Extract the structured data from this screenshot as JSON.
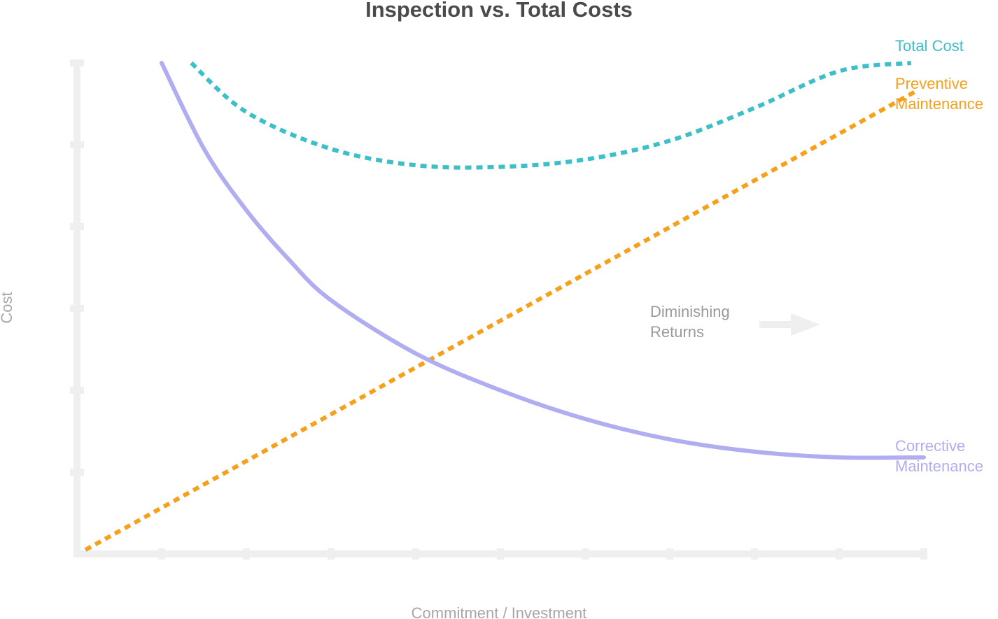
{
  "chart_data": {
    "type": "line",
    "title": "Inspection vs. Total Costs",
    "xlabel": "Commitment / Investment",
    "ylabel": "Cost",
    "xlim": [
      0,
      10
    ],
    "ylim": [
      0,
      6
    ],
    "grid": false,
    "x_ticks": 10,
    "y_ticks": 6,
    "series": [
      {
        "name": "Total Cost",
        "label_lines": [
          "Total Cost"
        ],
        "color": "#3dbfc8",
        "style": "dotted",
        "x": [
          1.35,
          2.0,
          3.0,
          4.0,
          5.0,
          6.0,
          7.0,
          8.0,
          9.0,
          9.85
        ],
        "y": [
          6.0,
          5.4,
          4.95,
          4.75,
          4.73,
          4.82,
          5.05,
          5.45,
          5.9,
          6.0
        ]
      },
      {
        "name": "Preventive Maintenance",
        "label_lines": [
          "Preventive",
          "Maintenance"
        ],
        "color": "#f5a11c",
        "style": "dotted",
        "x": [
          0.1,
          9.9
        ],
        "y": [
          0.05,
          5.65
        ]
      },
      {
        "name": "Corrective Maintenance",
        "label_lines": [
          "Corrective",
          "Maintenance"
        ],
        "color": "#b1adf1",
        "style": "solid",
        "x": [
          1.0,
          1.5,
          2.0,
          2.5,
          3.0,
          4.0,
          5.0,
          6.0,
          7.0,
          8.0,
          9.0,
          10.0
        ],
        "y": [
          6.0,
          4.95,
          4.2,
          3.6,
          3.1,
          2.45,
          2.0,
          1.65,
          1.4,
          1.25,
          1.18,
          1.18
        ]
      }
    ],
    "annotations": [
      {
        "text_lines": [
          "Diminishing",
          "Returns"
        ],
        "arrow": "right"
      }
    ]
  }
}
